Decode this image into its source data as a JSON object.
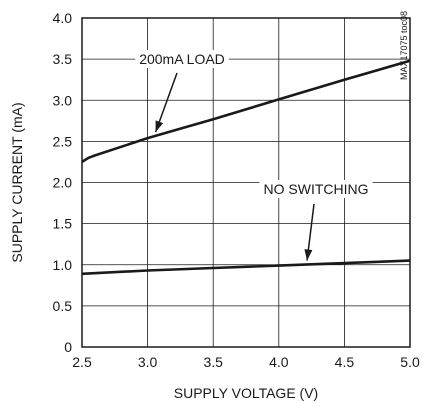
{
  "chart_data": {
    "type": "line",
    "title": "",
    "xlabel": "SUPPLY VOLTAGE (V)",
    "ylabel": "SUPPLY CURRENT (mA)",
    "xlim": [
      2.5,
      5.0
    ],
    "ylim": [
      0,
      4.0
    ],
    "xticks": [
      "2.5",
      "3.0",
      "3.5",
      "4.0",
      "4.5",
      "5.0"
    ],
    "yticks": [
      "0",
      "0.5",
      "1.0",
      "1.5",
      "2.0",
      "2.5",
      "3.0",
      "3.5",
      "4.0"
    ],
    "grid": true,
    "watermark": "MAX17075 toc08",
    "series": [
      {
        "name": "200mA LOAD",
        "x": [
          2.5,
          2.55,
          2.6,
          3.0,
          3.5,
          4.0,
          4.5,
          5.0
        ],
        "y": [
          2.25,
          2.3,
          2.33,
          2.54,
          2.77,
          3.01,
          3.25,
          3.48
        ]
      },
      {
        "name": "NO SWITCHING",
        "x": [
          2.5,
          3.0,
          3.5,
          4.0,
          4.5,
          5.0
        ],
        "y": [
          0.89,
          0.93,
          0.96,
          0.99,
          1.02,
          1.05
        ]
      }
    ]
  }
}
